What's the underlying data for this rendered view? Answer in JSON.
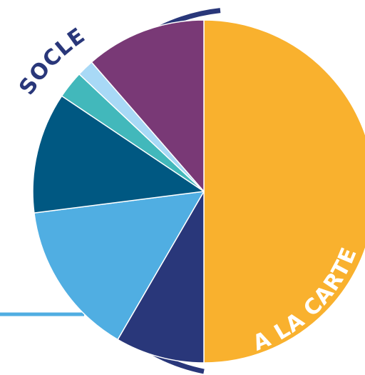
{
  "chart_data": {
    "type": "pie",
    "title": "",
    "slices": [
      {
        "value": 50.0,
        "color": "#F9B12E"
      },
      {
        "value": 8.4,
        "color": "#29377A"
      },
      {
        "value": 14.6,
        "color": "#50AEE2"
      },
      {
        "value": 11.4,
        "color": "#005882"
      },
      {
        "value": 2.6,
        "color": "#42B8BB"
      },
      {
        "value": 1.6,
        "color": "#A8D9F6"
      },
      {
        "value": 11.4,
        "color": "#793976"
      }
    ],
    "arc_labels": {
      "socle": "SOCLE",
      "a_la_carte": "A LA CARTE"
    },
    "colors": {
      "bracket": "#29377A",
      "pointer_line": "#50AEE2",
      "label_text": "#ffffff",
      "slice_border": "#ffffff"
    }
  }
}
